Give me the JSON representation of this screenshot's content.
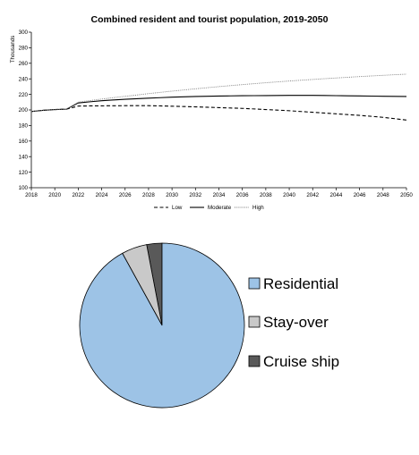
{
  "chart_data": [
    {
      "type": "line",
      "title": "Combined resident and tourist population, 2019-2050",
      "xlabel": "",
      "ylabel": "Thousands",
      "x": [
        2018,
        2019,
        2020,
        2021,
        2022,
        2023,
        2024,
        2025,
        2026,
        2027,
        2028,
        2029,
        2030,
        2031,
        2032,
        2033,
        2034,
        2035,
        2036,
        2037,
        2038,
        2039,
        2040,
        2041,
        2042,
        2043,
        2044,
        2045,
        2046,
        2047,
        2048,
        2049,
        2050
      ],
      "xlim": [
        2018,
        2050
      ],
      "xticks": [
        "2018",
        "2020",
        "2022",
        "2024",
        "2026",
        "2028",
        "2030",
        "2032",
        "2034",
        "2036",
        "2038",
        "2040",
        "2042",
        "2044",
        "2046",
        "2048",
        "2050"
      ],
      "ylim": [
        100,
        300
      ],
      "yticks": [
        "100",
        "120",
        "140",
        "160",
        "180",
        "200",
        "220",
        "240",
        "260",
        "280",
        "300"
      ],
      "grid": false,
      "legend_position": "bottom",
      "series": [
        {
          "name": "Low",
          "style": "dashed",
          "color": "#000000",
          "values": [
            198,
            199.5,
            200.5,
            201,
            205,
            205.2,
            205.3,
            205.4,
            205.5,
            205.5,
            205.5,
            205.2,
            204.8,
            204.4,
            204,
            203.5,
            203,
            202.5,
            202,
            201.3,
            200.5,
            199.8,
            199,
            198,
            197,
            196,
            195,
            194,
            193,
            191.8,
            190.5,
            188.8,
            187
          ]
        },
        {
          "name": "Moderate",
          "style": "solid",
          "color": "#000000",
          "values": [
            198,
            199.5,
            200.5,
            201,
            209,
            210.5,
            211.8,
            212.8,
            213.7,
            214.5,
            215.2,
            215.8,
            216.4,
            216.9,
            217.3,
            217.6,
            217.9,
            218.1,
            218.3,
            218.4,
            218.5,
            218.6,
            218.7,
            218.7,
            218.7,
            218.6,
            218.4,
            218.2,
            218,
            217.8,
            217.6,
            217.4,
            217.3
          ]
        },
        {
          "name": "High",
          "style": "dotted",
          "color": "#777777",
          "values": [
            198,
            199.5,
            200.5,
            201,
            210,
            212,
            214,
            215.8,
            217.5,
            219.2,
            221,
            222.6,
            224.2,
            225.7,
            227.2,
            228.6,
            230,
            231.3,
            232.6,
            233.8,
            235,
            236.1,
            237.2,
            238.2,
            239.2,
            240.2,
            241.1,
            242,
            242.9,
            243.7,
            244.5,
            245.3,
            246
          ]
        }
      ]
    },
    {
      "type": "pie",
      "title": "",
      "legend_position": "right",
      "slices": [
        {
          "label": "Residential",
          "value": 92,
          "color": "#9dc3e6"
        },
        {
          "label": "Stay-over",
          "value": 5,
          "color": "#c9c9c9"
        },
        {
          "label": "Cruise ship",
          "value": 3,
          "color": "#595959"
        }
      ]
    }
  ]
}
